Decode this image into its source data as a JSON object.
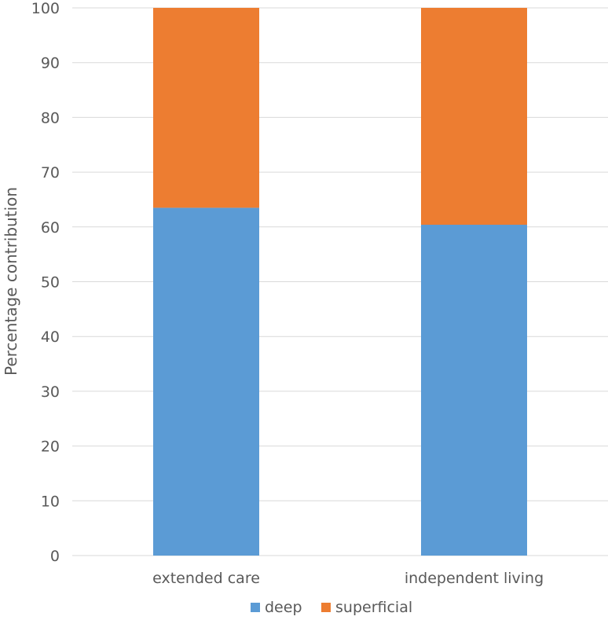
{
  "chart_data": {
    "type": "bar",
    "stacked": true,
    "title": "",
    "xlabel": "",
    "ylabel": "Percentage contribution",
    "ylim": [
      0,
      100
    ],
    "yticks": [
      0,
      10,
      20,
      30,
      40,
      50,
      60,
      70,
      80,
      90,
      100
    ],
    "categories": [
      "extended care",
      "independent living"
    ],
    "series": [
      {
        "name": "deep",
        "color": "#5b9bd5",
        "values": [
          63.5,
          60.4
        ]
      },
      {
        "name": "superficial",
        "color": "#ed7d31",
        "values": [
          36.5,
          39.6
        ]
      }
    ],
    "grid": true,
    "legend_position": "bottom"
  }
}
